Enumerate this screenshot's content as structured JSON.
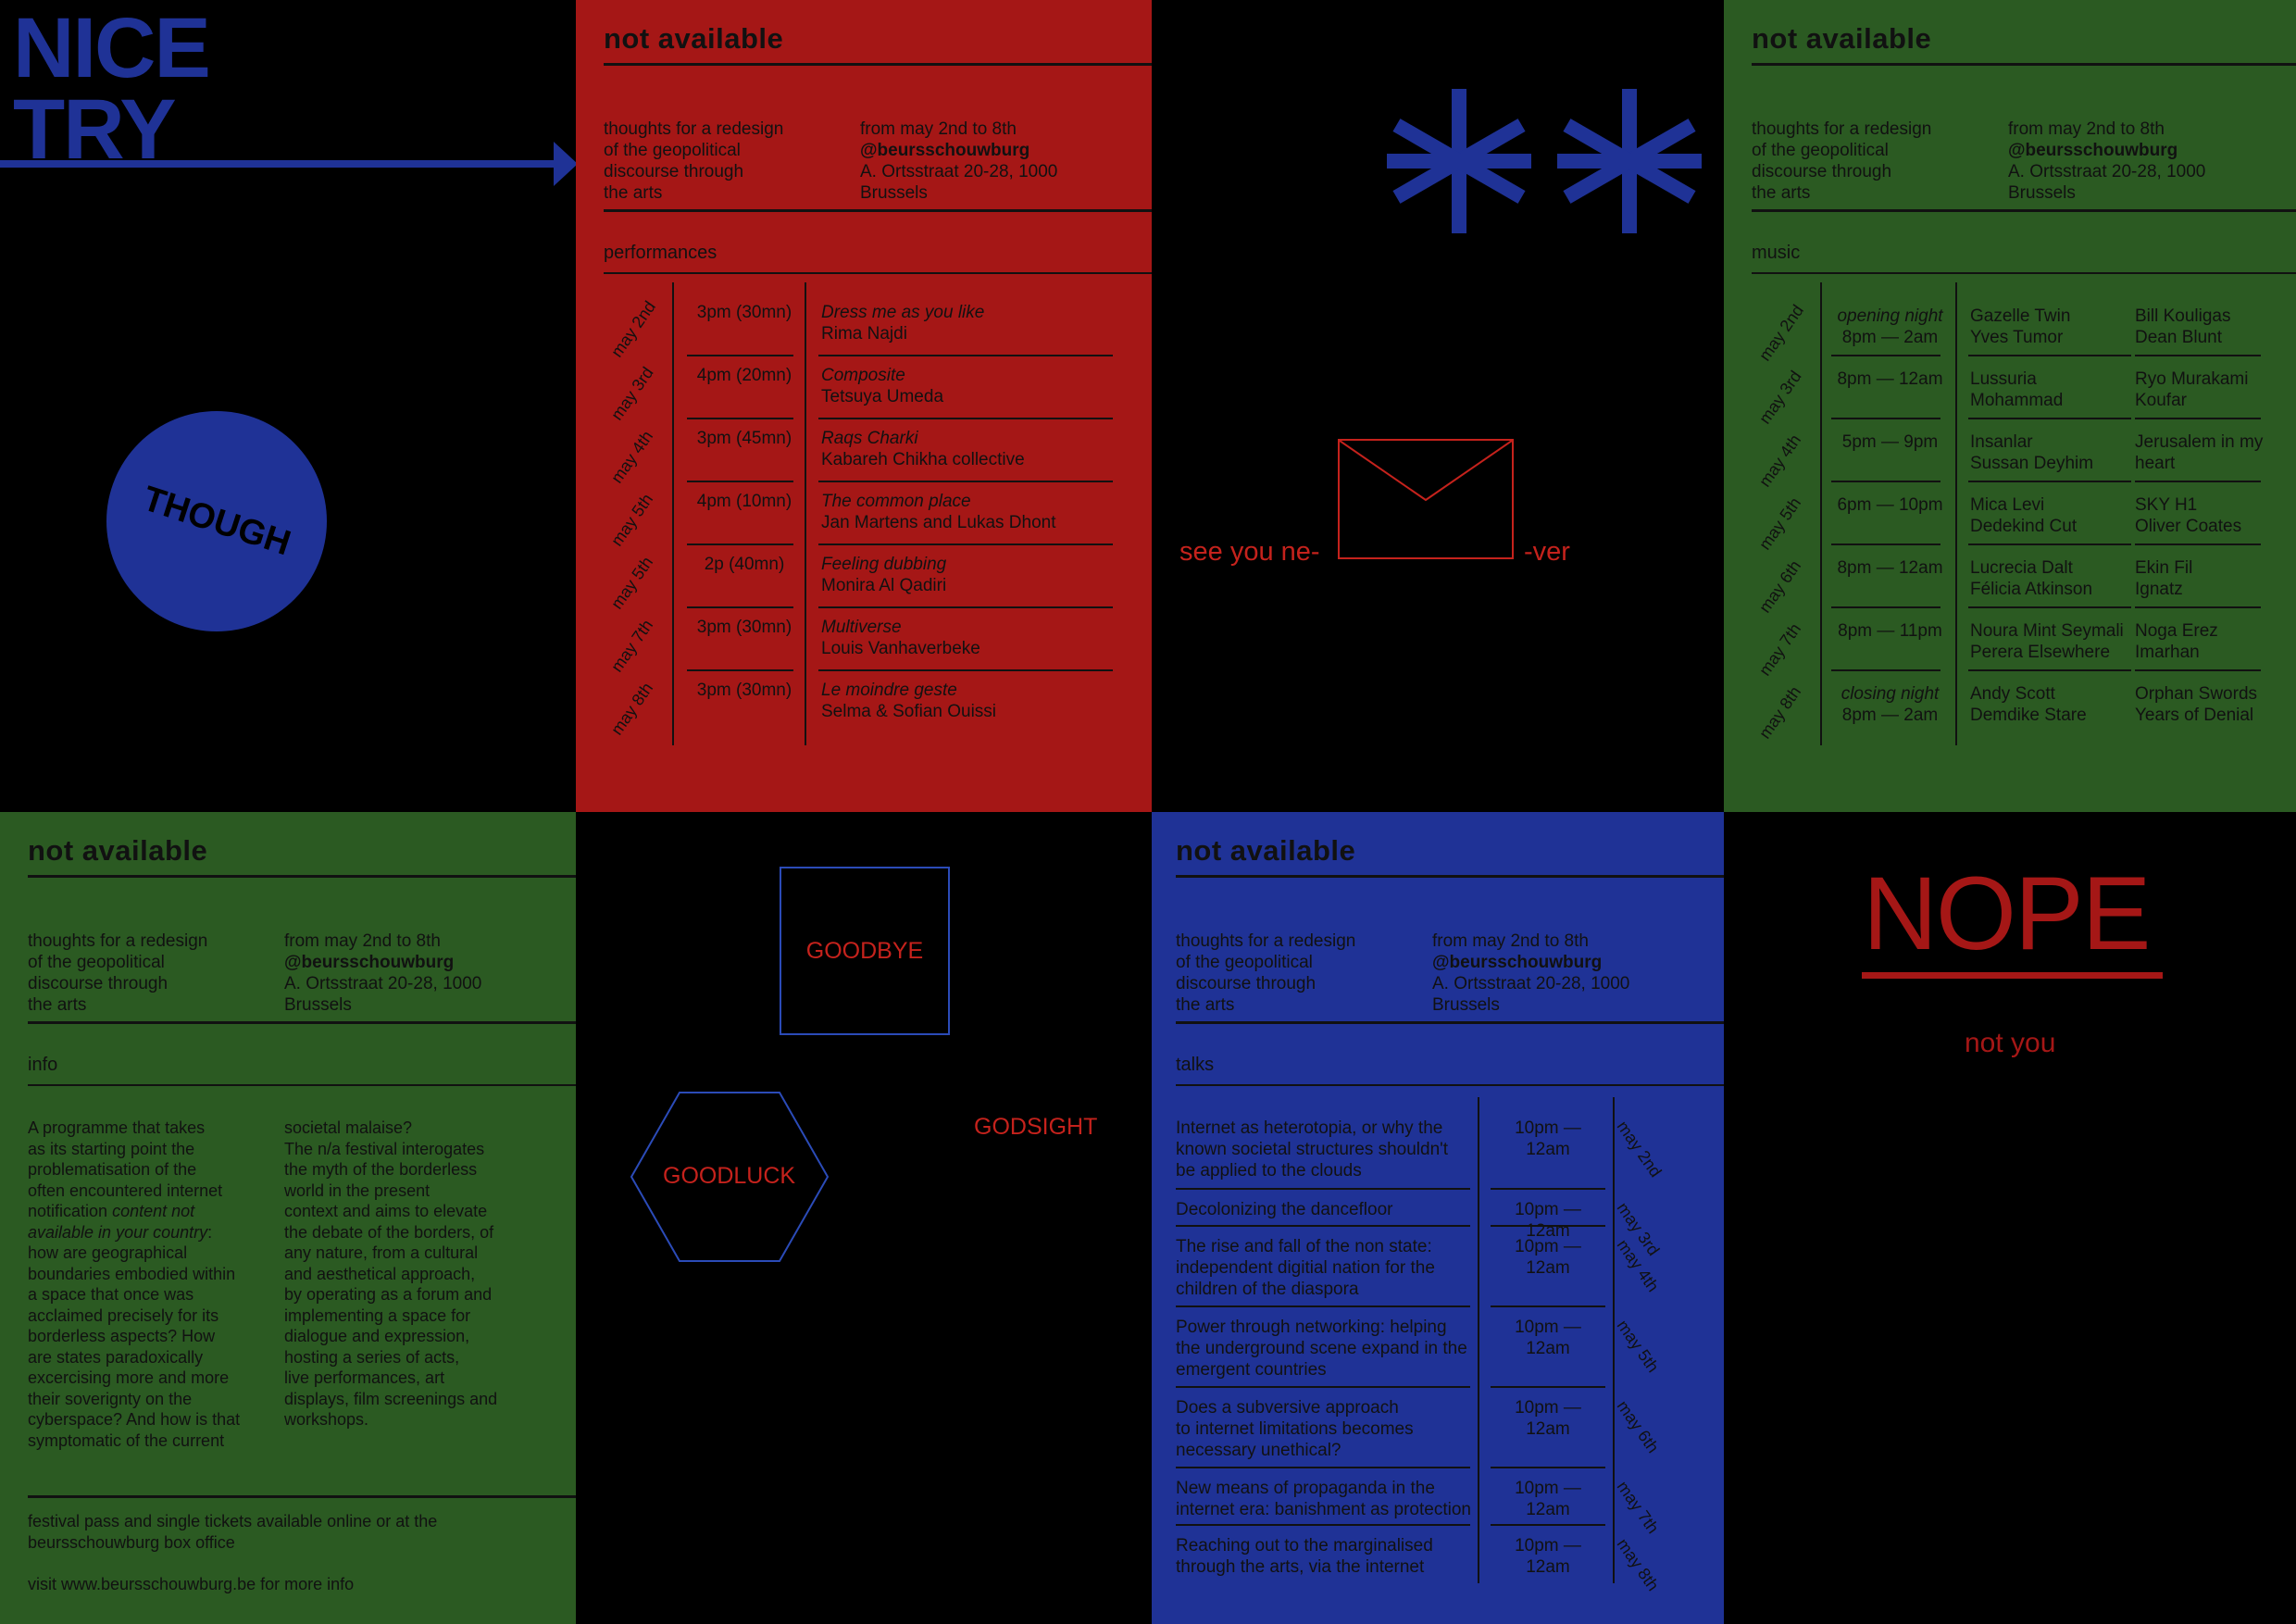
{
  "colors": {
    "red": "#a51716",
    "green": "#2b5a22",
    "blue": "#1f3296",
    "black": "#000000"
  },
  "poster1": {
    "nice": "NICE",
    "try": "TRY",
    "sticker": "THOUGH",
    "icons": [
      "arrow-right-icon",
      "circle-sticker"
    ]
  },
  "common": {
    "title": "not available",
    "intro": [
      "thoughts for a redesign",
      "of the geopolitical",
      "discourse through",
      "the arts"
    ],
    "dates": "from may 2nd to 8th",
    "handle": "@beursschouwburg",
    "address": "A. Ortsstraat 20-28, 1000",
    "city": "Brussels"
  },
  "performances": {
    "section": "performances",
    "rows": [
      {
        "date": "may 2nd",
        "time": "3pm (30mn)",
        "title": "Dress me as you like",
        "artist": "Rima Najdi"
      },
      {
        "date": "may 3rd",
        "time": "4pm (20mn)",
        "title": "Composite",
        "artist": "Tetsuya Umeda"
      },
      {
        "date": "may 4th",
        "time": "3pm (45mn)",
        "title": "Raqs Charki",
        "artist": "Kabareh Chikha collective"
      },
      {
        "date": "may 5th",
        "time": "4pm (10mn)",
        "title": "The common place",
        "artist": "Jan Martens and Lukas Dhont"
      },
      {
        "date": "may 5th",
        "time": "2p (40mn)",
        "title": "Feeling dubbing",
        "artist": "Monira Al Qadiri"
      },
      {
        "date": "may 7th",
        "time": "3pm (30mn)",
        "title": "Multiverse",
        "artist": "Louis Vanhaverbeke"
      },
      {
        "date": "may 8th",
        "time": "3pm (30mn)",
        "title": "Le moindre geste",
        "artist": "Selma & Sofian Ouissi"
      }
    ]
  },
  "poster3": {
    "see": "see you ne-",
    "ver": "-ver",
    "icons": [
      "asterisk-icon",
      "asterisk-icon",
      "envelope-icon"
    ]
  },
  "music": {
    "section": "music",
    "rows": [
      {
        "date": "may 2nd",
        "note": "opening night",
        "time": "8pm — 2am",
        "a1": "Gazelle Twin",
        "a2": "Yves Tumor",
        "b1": "Bill Kouligas",
        "b2": "Dean Blunt"
      },
      {
        "date": "may 3rd",
        "note": "",
        "time": "8pm — 12am",
        "a1": "Lussuria",
        "a2": "Mohammad",
        "b1": "Ryo Murakami",
        "b2": "Koufar"
      },
      {
        "date": "may 4th",
        "note": "",
        "time": "5pm — 9pm",
        "a1": "Insanlar",
        "a2": "Sussan Deyhim",
        "b1": "Jerusalem in my",
        "b2": "heart"
      },
      {
        "date": "may 5th",
        "note": "",
        "time": "6pm — 10pm",
        "a1": "Mica Levi",
        "a2": "Dedekind Cut",
        "b1": "SKY H1",
        "b2": "Oliver Coates"
      },
      {
        "date": "may 6th",
        "note": "",
        "time": "8pm — 12am",
        "a1": "Lucrecia Dalt",
        "a2": "Félicia Atkinson",
        "b1": "Ekin Fil",
        "b2": "Ignatz"
      },
      {
        "date": "may 7th",
        "note": "",
        "time": "8pm — 11pm",
        "a1": "Noura Mint Seymali",
        "a2": "Perera Elsewhere",
        "b1": "Noga Erez",
        "b2": "Imarhan"
      },
      {
        "date": "may 8th",
        "note": "closing night",
        "time": "8pm — 2am",
        "a1": "Andy Scott",
        "a2": "Demdike Stare",
        "b1": "Orphan Swords",
        "b2": "Years of Denial"
      }
    ]
  },
  "info": {
    "section": "info",
    "col1": [
      "A programme that takes",
      "as its starting point the",
      "problematisation of the",
      "often encountered internet",
      "notification",
      "available in your country",
      "how are geographical",
      "boundaries embodied within",
      "a space that once was",
      "acclaimed precisely for its",
      "borderless aspects? How",
      "are states paradoxically",
      "excercising more and more",
      "their soverignty on the",
      "cyberspace? And how is that",
      "symptomatic of the current"
    ],
    "italic1": "content not",
    "colon": ":",
    "col2": [
      "societal malaise?",
      "The n/a festival interogates",
      "the myth of the borderless",
      "world in the present",
      "context and aims to elevate",
      "the debate of the borders, of",
      "any nature, from a cultural",
      "and aesthetical approach,",
      "by operating as a forum and",
      "implementing a space for",
      "dialogue and expression,",
      "hosting a series of acts,",
      "live performances, art",
      "displays, film screenings and",
      "workshops."
    ],
    "foot1": "festival pass and single tickets available online or at the",
    "foot2": "beursschouwburg box office",
    "foot3": "visit www.beursschouwburg.be for more info"
  },
  "poster6": {
    "goodbye": "GOODBYE",
    "goodluck": "GOODLUCK",
    "godsight": "GODSIGHT",
    "icons": [
      "square-outline",
      "hexagon-outline"
    ]
  },
  "talks": {
    "section": "talks",
    "rows": [
      {
        "title": [
          "Internet as heterotopia, or why the",
          "known societal structures shouldn't",
          "be applied to the clouds"
        ],
        "time": "10pm — 12am",
        "date": "may 2nd"
      },
      {
        "title": [
          "Decolonizing the dancefloor"
        ],
        "time": "10pm — 12am",
        "date": "may 3rd"
      },
      {
        "title": [
          "The rise and fall of the non state:",
          "independent digitial nation for the",
          "children of the diaspora"
        ],
        "time": "10pm — 12am",
        "date": "may 4th"
      },
      {
        "title": [
          "Power through networking: helping",
          "the underground scene expand in the",
          "emergent countries"
        ],
        "time": "10pm — 12am",
        "date": "may 5th"
      },
      {
        "title": [
          "Does a subversive approach",
          "to internet limitations becomes",
          "necessary unethical?"
        ],
        "time": "10pm — 12am",
        "date": "may 6th"
      },
      {
        "title": [
          "New means of propaganda in the",
          "internet era: banishment as protection"
        ],
        "time": "10pm — 12am",
        "date": "may 7th"
      },
      {
        "title": [
          "Reaching out to the marginalised",
          "through the arts, via the internet"
        ],
        "time": "10pm — 12am",
        "date": "may 8th"
      }
    ]
  },
  "poster8": {
    "nope": "NOPE",
    "notyou": "not you"
  }
}
